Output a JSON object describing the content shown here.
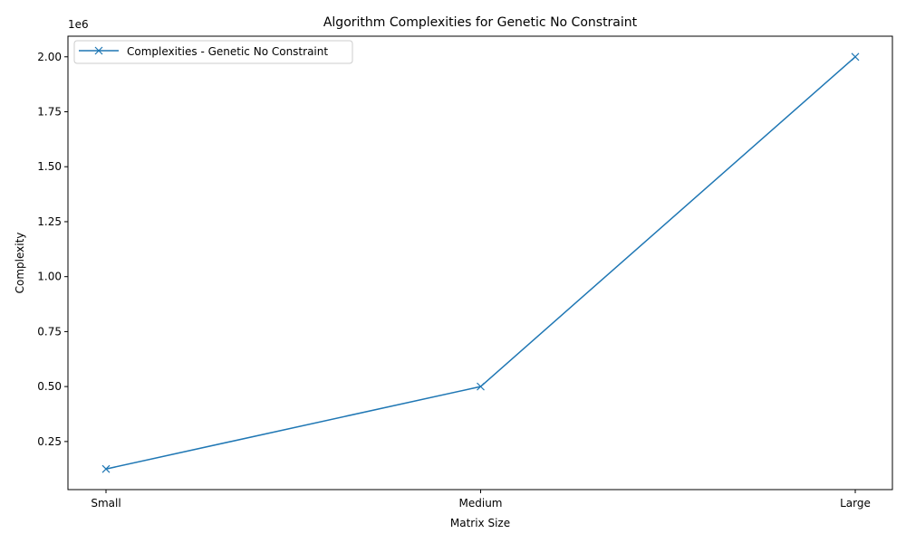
{
  "chart_data": {
    "type": "line",
    "title": "Algorithm Complexities for Genetic No Constraint",
    "xlabel": "Matrix Size",
    "ylabel": "Complexity",
    "y_offset_label": "1e6",
    "categories": [
      "Small",
      "Medium",
      "Large"
    ],
    "series": [
      {
        "name": "Complexities - Genetic No Constraint",
        "values": [
          125000,
          500000,
          2000000
        ],
        "color": "#1f77b4",
        "marker": "x"
      }
    ],
    "ylim": [
      31250,
      2093750
    ],
    "y_ticks": [
      250000,
      500000,
      750000,
      1000000,
      1250000,
      1500000,
      1750000,
      2000000
    ],
    "y_tick_labels": [
      "0.25",
      "0.50",
      "0.75",
      "1.00",
      "1.25",
      "1.50",
      "1.75",
      "2.00"
    ],
    "grid": false,
    "legend_position": "upper-left"
  }
}
